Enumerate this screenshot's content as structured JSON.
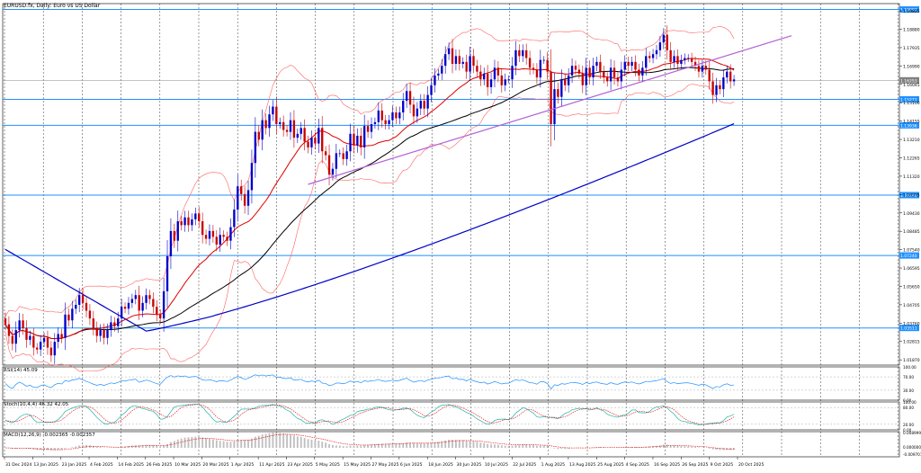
{
  "colors": {
    "background": "#ffffff",
    "grid": "#000000",
    "bull_candle": "#0000c8",
    "bear_candle": "#c80000",
    "hline": "#1e90ff",
    "ma_fast": "#e00000",
    "ma_mid": "#000000",
    "ma_slow": "#0000c8",
    "bands": "#ff6060",
    "trendline": "#b35fd6",
    "rsi": "#1e90ff",
    "stoch_main": "#20b2aa",
    "stoch_signal": "#e00000",
    "macd_hist": "#c0c0c0",
    "macd_signal": "#e00000",
    "price_tag": "#1e90ff"
  },
  "header": {
    "title": "EURUSD.fx, Daily: Euro vs US Dollar"
  },
  "chart_data": {
    "type": "candlestick",
    "title": "EURUSD.fx, Daily: Euro vs US Dollar",
    "ylim": [
      1.016,
      1.202
    ],
    "y_ticks": [
      "1.19825",
      "1.18880",
      "1.17935",
      "1.16990",
      "1.16045",
      "1.15100",
      "1.14155",
      "1.13210",
      "1.12265",
      "1.11320",
      "1.10375",
      "1.09430",
      "1.08485",
      "1.07540",
      "1.06595",
      "1.05650",
      "1.04705",
      "1.03760",
      "1.02815",
      "1.01870"
    ],
    "x_labels": [
      "31 Dec 2024",
      "13 Jan 2025",
      "23 Jan 2025",
      "4 Feb 2025",
      "14 Feb 2025",
      "26 Feb 2025",
      "10 Mar 2025",
      "20 Mar 2025",
      "1 Apr 2025",
      "11 Apr 2025",
      "23 Apr 2025",
      "5 May 2025",
      "15 May 2025",
      "27 May 2025",
      "6 Jun 2025",
      "18 Jun 2025",
      "30 Jun 2025",
      "10 Jul 2025",
      "22 Jul 2025",
      "1 Aug 2025",
      "13 Aug 2025",
      "25 Aug 2025",
      "4 Sep 2025",
      "16 Sep 2025",
      "26 Sep 2025",
      "9 Oct 2025",
      "20 Oct 2025"
    ],
    "current_price": "1.16253",
    "horizontal_levels": [
      {
        "price": 1.19897,
        "label": "1.19897"
      },
      {
        "price": 1.15271,
        "label": "1.15271"
      },
      {
        "price": 1.13936,
        "label": "1.13936"
      },
      {
        "price": 1.10344,
        "label": "1.10344"
      },
      {
        "price": 1.0724,
        "label": "1.07240"
      },
      {
        "price": 1.03511,
        "label": "1.03511"
      }
    ],
    "candle_count": 210,
    "closes": [
      1.037,
      1.031,
      1.027,
      1.034,
      1.039,
      1.035,
      1.029,
      1.031,
      1.025,
      1.024,
      1.028,
      1.03,
      1.025,
      1.021,
      1.028,
      1.032,
      1.03,
      1.042,
      1.039,
      1.045,
      1.047,
      1.052,
      1.048,
      1.044,
      1.04,
      1.035,
      1.031,
      1.034,
      1.03,
      1.034,
      1.038,
      1.036,
      1.04,
      1.046,
      1.045,
      1.048,
      1.05,
      1.052,
      1.044,
      1.048,
      1.052,
      1.05,
      1.046,
      1.042,
      1.04,
      1.054,
      1.072,
      1.085,
      1.08,
      1.09,
      1.088,
      1.092,
      1.088,
      1.091,
      1.094,
      1.09,
      1.083,
      1.081,
      1.085,
      1.082,
      1.078,
      1.083,
      1.082,
      1.08,
      1.087,
      1.096,
      1.108,
      1.104,
      1.098,
      1.106,
      1.12,
      1.136,
      1.132,
      1.142,
      1.138,
      1.145,
      1.149,
      1.14,
      1.141,
      1.137,
      1.136,
      1.142,
      1.133,
      1.135,
      1.138,
      1.131,
      1.128,
      1.133,
      1.13,
      1.138,
      1.126,
      1.124,
      1.114,
      1.117,
      1.125,
      1.125,
      1.122,
      1.126,
      1.135,
      1.129,
      1.134,
      1.128,
      1.139,
      1.136,
      1.14,
      1.141,
      1.147,
      1.142,
      1.14,
      1.142,
      1.146,
      1.143,
      1.146,
      1.152,
      1.157,
      1.15,
      1.144,
      1.148,
      1.152,
      1.148,
      1.155,
      1.16,
      1.165,
      1.166,
      1.17,
      1.176,
      1.179,
      1.171,
      1.175,
      1.171,
      1.172,
      1.167,
      1.175,
      1.17,
      1.167,
      1.163,
      1.166,
      1.159,
      1.163,
      1.169,
      1.165,
      1.16,
      1.163,
      1.163,
      1.17,
      1.178,
      1.175,
      1.178,
      1.174,
      1.169,
      1.168,
      1.164,
      1.173,
      1.173,
      1.167,
      1.14,
      1.158,
      1.154,
      1.163,
      1.16,
      1.165,
      1.17,
      1.168,
      1.166,
      1.16,
      1.169,
      1.164,
      1.17,
      1.172,
      1.167,
      1.164,
      1.162,
      1.169,
      1.164,
      1.162,
      1.168,
      1.172,
      1.17,
      1.172,
      1.168,
      1.165,
      1.169,
      1.175,
      1.174,
      1.176,
      1.178,
      1.182,
      1.186,
      1.178,
      1.172,
      1.175,
      1.171,
      1.173,
      1.174,
      1.174,
      1.172,
      1.17,
      1.167,
      1.17,
      1.168,
      1.162,
      1.155,
      1.16,
      1.158,
      1.164,
      1.167,
      1.162,
      1.163
    ]
  },
  "indicators": {
    "rsi": {
      "label": "RSI(14) 45.09",
      "ylim": [
        0,
        100
      ],
      "ticks": [
        "100.00",
        "70.00",
        "30.00",
        "0.00"
      ]
    },
    "stochastic": {
      "label": "Stoch(10,4,4) 46.32 42.05",
      "ylim": [
        0,
        100
      ],
      "ticks": [
        "100.00",
        "80.00",
        "20.00",
        "0.00"
      ]
    },
    "macd": {
      "label": "MACD(12,26,9) -0.002365 -0.002357",
      "ticks": [
        "0.008999",
        "0.000000",
        "-0.009701"
      ]
    }
  }
}
